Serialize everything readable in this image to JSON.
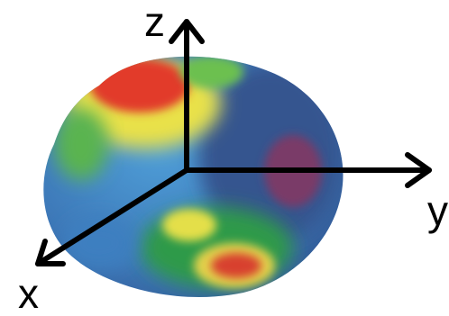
{
  "axes": {
    "z": "z",
    "y": "y",
    "x": "x"
  }
}
